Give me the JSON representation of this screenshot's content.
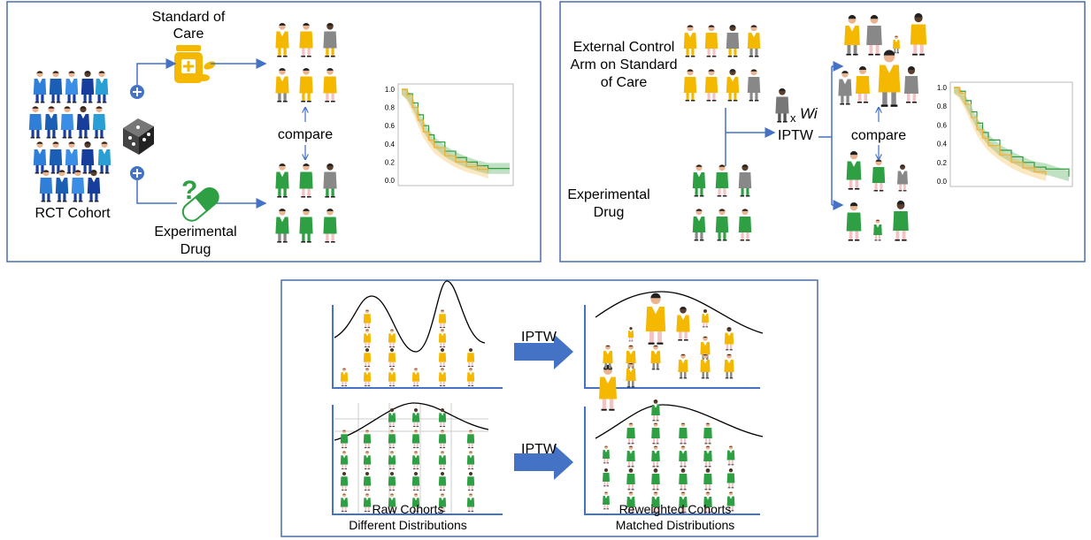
{
  "panel_rct": {
    "standard_of_care_line1": "Standard of",
    "standard_of_care_line2": "Care",
    "rct_cohort": "RCT Cohort",
    "experimental_line1": "Experimental",
    "experimental_line2": "Drug",
    "compare": "compare",
    "km_ticks": [
      "1.0",
      "0.8",
      "0.6",
      "0.4",
      "0.2",
      "0.0"
    ]
  },
  "panel_external": {
    "external_line1": "External Control",
    "external_line2": "Arm on Standard",
    "external_line3": "of Care",
    "weight_x": "x",
    "weight_label": "Wi",
    "iptw": "IPTW",
    "compare": "compare",
    "experimental_line1": "Experimental",
    "experimental_line2": "Drug",
    "km_ticks": [
      "1.0",
      "0.8",
      "0.6",
      "0.4",
      "0.2",
      "0.0"
    ]
  },
  "panel_distributions": {
    "iptw_top": "IPTW",
    "iptw_bottom": "IPTW",
    "raw_line1": "Raw Cohorts",
    "raw_line2": "Different Distributions",
    "reweighted_line1": "Reweighted Cohorts",
    "reweighted_line2": "Matched Distributions"
  },
  "colors": {
    "border": "#4a6ea9",
    "arrow": "#4472c4",
    "soc_yellow": "#f5b800",
    "drug_green": "#2ea043",
    "rct_blue": "#2f7fd8",
    "km_green": "#2e9b3b",
    "km_orange": "#f2b134"
  },
  "chart_data": [
    {
      "type": "line",
      "title": "",
      "xlabel": "",
      "ylabel": "",
      "ylim": [
        0,
        1
      ],
      "series": [
        {
          "x": [
            0,
            0.05,
            0.1,
            0.15,
            0.2,
            0.25,
            0.3,
            0.4,
            0.5,
            0.6,
            0.7,
            0.8,
            1.0
          ],
          "values": [
            1.0,
            0.95,
            0.85,
            0.72,
            0.6,
            0.5,
            0.42,
            0.32,
            0.25,
            0.2,
            0.16,
            0.13,
            0.13
          ]
        },
        {
          "x": [
            0,
            0.05,
            0.1,
            0.15,
            0.2,
            0.25,
            0.3,
            0.4,
            0.5,
            0.6,
            0.7,
            0.8
          ],
          "values": [
            1.0,
            0.93,
            0.8,
            0.66,
            0.53,
            0.44,
            0.36,
            0.27,
            0.2,
            0.15,
            0.12,
            0.08
          ]
        }
      ]
    },
    {
      "type": "line",
      "title": "",
      "xlabel": "",
      "ylabel": "",
      "ylim": [
        0,
        1
      ],
      "series": [
        {
          "x": [
            0,
            0.05,
            0.1,
            0.15,
            0.2,
            0.25,
            0.3,
            0.4,
            0.5,
            0.6,
            0.7,
            0.8,
            1.0
          ],
          "values": [
            1.0,
            0.96,
            0.86,
            0.74,
            0.62,
            0.52,
            0.44,
            0.33,
            0.26,
            0.2,
            0.15,
            0.13,
            0.05
          ]
        },
        {
          "x": [
            0,
            0.05,
            0.1,
            0.15,
            0.2,
            0.25,
            0.3,
            0.4,
            0.5,
            0.6,
            0.7,
            0.8
          ],
          "values": [
            1.0,
            0.94,
            0.82,
            0.68,
            0.55,
            0.46,
            0.38,
            0.28,
            0.2,
            0.14,
            0.1,
            0.06
          ]
        }
      ]
    }
  ]
}
